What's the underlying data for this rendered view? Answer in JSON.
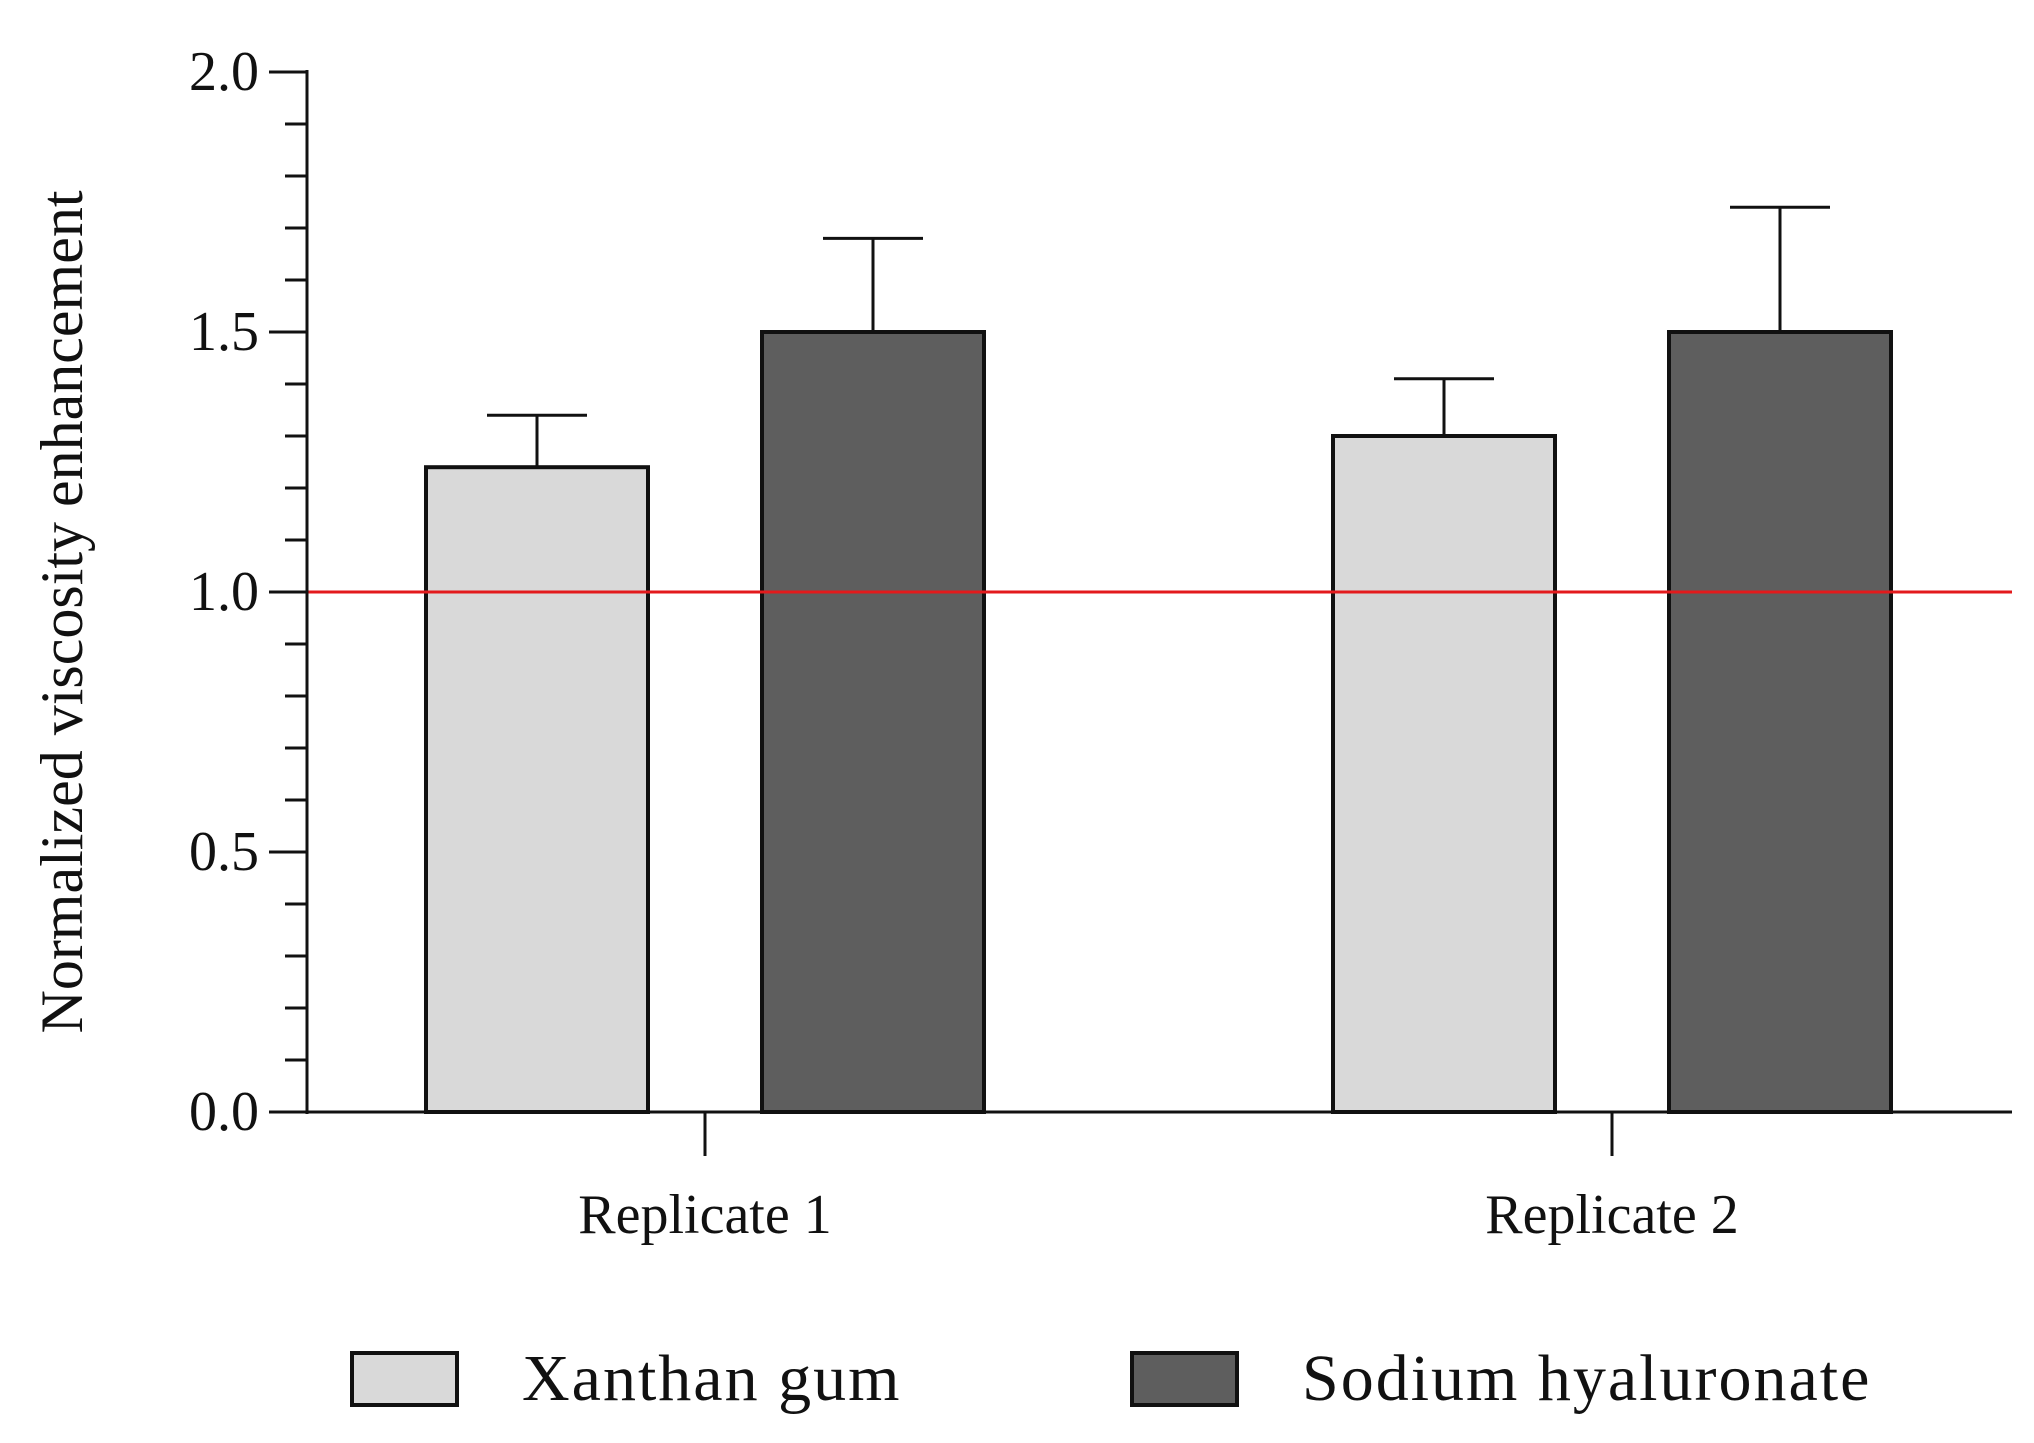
{
  "chart_data": {
    "type": "bar",
    "title": "",
    "xlabel": "",
    "ylabel": "Normalized viscosity enhancement",
    "ylim": [
      0,
      2.0
    ],
    "y_ticks": [
      "0.0",
      "0.5",
      "1.0",
      "1.5",
      "2.0"
    ],
    "y_minor_step": 0.1,
    "categories": [
      "Replicate 1",
      "Replicate 2"
    ],
    "series": [
      {
        "name": "Xanthan gum",
        "color": "#d9d9d9",
        "values": [
          1.24,
          1.3
        ],
        "errors": [
          0.1,
          0.11
        ]
      },
      {
        "name": "Sodium hyaluronate",
        "color": "#5e5e5e",
        "values": [
          1.5,
          1.5
        ],
        "errors": [
          0.18,
          0.24
        ]
      }
    ],
    "reference_line": {
      "value": 1.0,
      "color": "#e31a1c"
    },
    "grid": false,
    "legend_position": "bottom-center",
    "axis_color": "#111111"
  }
}
